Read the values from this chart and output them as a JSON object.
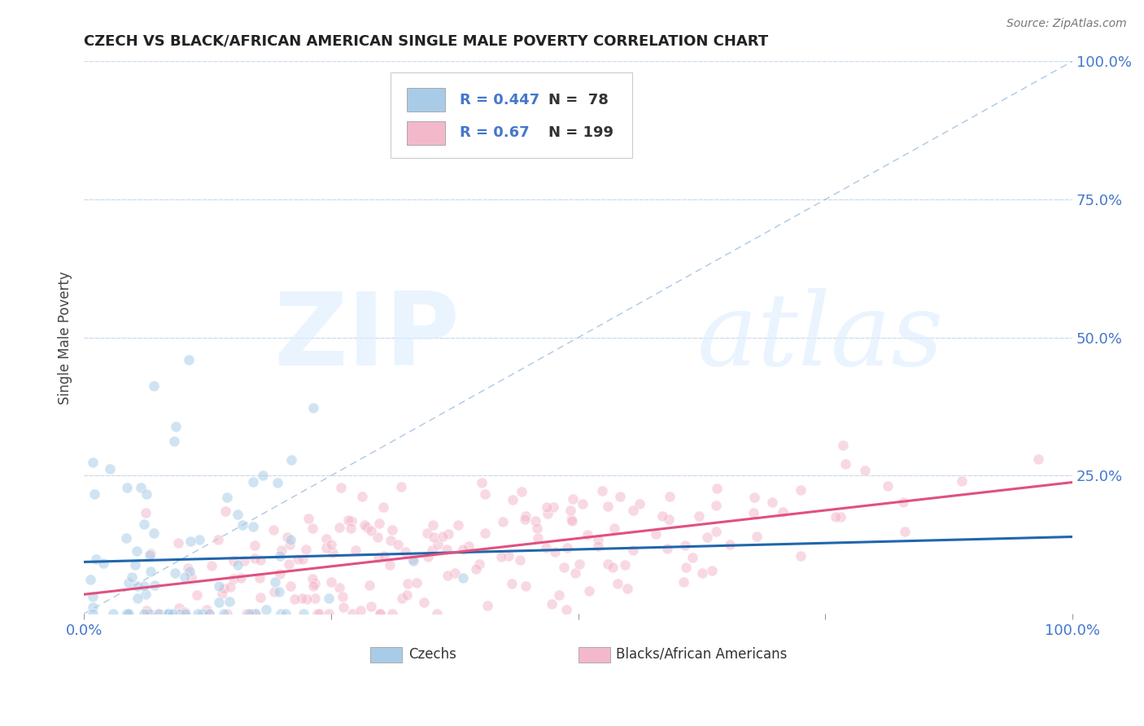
{
  "title": "CZECH VS BLACK/AFRICAN AMERICAN SINGLE MALE POVERTY CORRELATION CHART",
  "source": "Source: ZipAtlas.com",
  "ylabel": "Single Male Poverty",
  "xlim": [
    0,
    1
  ],
  "ylim": [
    0,
    1
  ],
  "blue_R": 0.447,
  "blue_N": 78,
  "pink_R": 0.67,
  "pink_N": 199,
  "blue_color": "#a8cce8",
  "pink_color": "#f4b8cb",
  "blue_line_color": "#2166ac",
  "pink_line_color": "#e05080",
  "diag_color": "#99bbdd",
  "legend_label_blue": "Czechs",
  "legend_label_pink": "Blacks/African Americans",
  "watermark_zip": "ZIP",
  "watermark_atlas": "atlas",
  "background_color": "#ffffff",
  "grid_color": "#ccddee",
  "title_color": "#222222",
  "tick_label_color": "#4477cc",
  "source_color": "#777777",
  "dot_size": 90,
  "dot_alpha": 0.55,
  "blue_seed": 7,
  "pink_seed": 42,
  "legend_R_color": "#4477cc",
  "legend_N_color": "#333333"
}
